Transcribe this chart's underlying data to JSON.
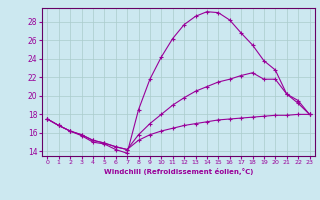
{
  "xlabel": "Windchill (Refroidissement éolien,°C)",
  "background_color": "#cce8f0",
  "grid_color": "#aacccc",
  "line_color": "#990099",
  "spine_color": "#660066",
  "xlim": [
    -0.5,
    23.5
  ],
  "ylim": [
    13.5,
    29.5
  ],
  "yticks": [
    14,
    16,
    18,
    20,
    22,
    24,
    26,
    28
  ],
  "xticks": [
    0,
    1,
    2,
    3,
    4,
    5,
    6,
    7,
    8,
    9,
    10,
    11,
    12,
    13,
    14,
    15,
    16,
    17,
    18,
    19,
    20,
    21,
    22,
    23
  ],
  "line1_x": [
    0,
    1,
    2,
    3,
    4,
    5,
    6,
    7,
    8,
    9,
    10,
    11,
    12,
    13,
    14,
    15,
    16,
    17,
    18,
    19,
    20,
    21,
    22,
    23
  ],
  "line1_y": [
    17.5,
    16.8,
    16.2,
    15.7,
    15.0,
    14.8,
    14.2,
    13.8,
    18.5,
    21.8,
    24.2,
    26.2,
    27.7,
    28.6,
    29.1,
    29.0,
    28.2,
    26.8,
    25.5,
    23.8,
    22.8,
    20.2,
    19.5,
    18.0
  ],
  "line2_x": [
    0,
    1,
    2,
    3,
    4,
    5,
    6,
    7,
    8,
    9,
    10,
    11,
    12,
    13,
    14,
    15,
    16,
    17,
    18,
    19,
    20,
    21,
    22,
    23
  ],
  "line2_y": [
    17.5,
    16.8,
    16.2,
    15.8,
    15.2,
    14.9,
    14.5,
    14.2,
    15.8,
    17.0,
    18.0,
    19.0,
    19.8,
    20.5,
    21.0,
    21.5,
    21.8,
    22.2,
    22.5,
    21.8,
    21.8,
    20.2,
    19.2,
    18.0
  ],
  "line3_x": [
    0,
    1,
    2,
    3,
    4,
    5,
    6,
    7,
    8,
    9,
    10,
    11,
    12,
    13,
    14,
    15,
    16,
    17,
    18,
    19,
    20,
    21,
    22,
    23
  ],
  "line3_y": [
    17.5,
    16.8,
    16.2,
    15.8,
    15.2,
    14.9,
    14.5,
    14.2,
    15.2,
    15.8,
    16.2,
    16.5,
    16.8,
    17.0,
    17.2,
    17.4,
    17.5,
    17.6,
    17.7,
    17.8,
    17.9,
    17.9,
    18.0,
    18.0
  ]
}
